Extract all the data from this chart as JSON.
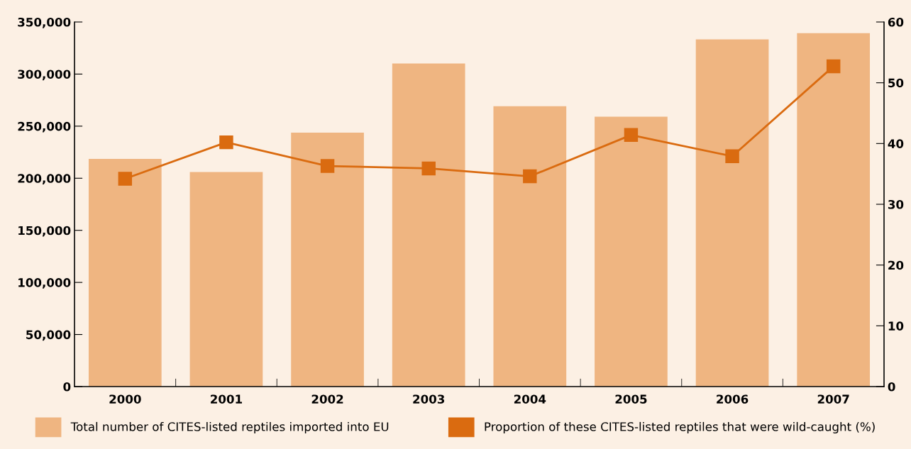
{
  "chart_data": {
    "type": "bar",
    "categories": [
      "2000",
      "2001",
      "2002",
      "2003",
      "2004",
      "2005",
      "2006",
      "2007"
    ],
    "series": [
      {
        "name": "Total number of CITES-listed reptiles imported into EU",
        "color": "#efb581",
        "values": [
          218600,
          205900,
          243700,
          310100,
          269100,
          259100,
          333400,
          339300
        ]
      },
      {
        "name": "Proportion of these CITES-listed reptiles that were wild-caught (%)",
        "type": "line",
        "axis": "y2",
        "color": "#da6b10",
        "marker": "square",
        "values": [
          34.2,
          40.2,
          36.3,
          35.9,
          34.6,
          41.4,
          37.9,
          52.7
        ]
      }
    ],
    "ylim": [
      0,
      350000
    ],
    "yticks": [
      0,
      {
        "value": 50000,
        "label": "50,000"
      },
      {
        "value": 100000,
        "label": "100,000"
      },
      {
        "value": 150000,
        "label": "150,000"
      },
      {
        "value": 200000,
        "label": "200,000"
      },
      {
        "value": 250000,
        "label": "250,000"
      },
      {
        "value": 300000,
        "label": "300,000"
      },
      {
        "value": 350000,
        "label": "350,000"
      }
    ],
    "y2lim": [
      0,
      60
    ],
    "y2ticks": [
      0,
      10,
      20,
      30,
      40,
      50,
      60
    ],
    "grid": false,
    "legend": "bottom"
  }
}
